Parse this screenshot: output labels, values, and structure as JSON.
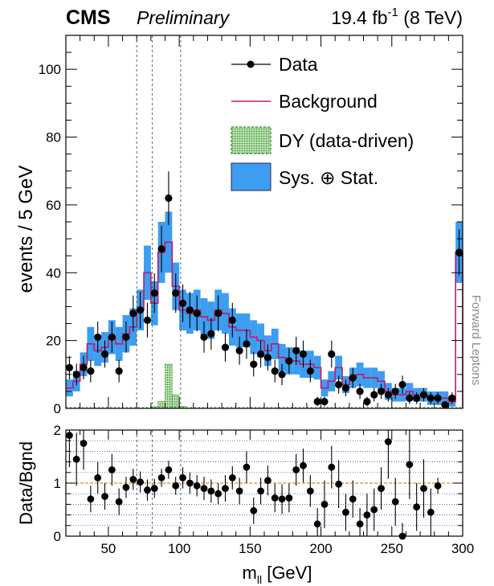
{
  "header": {
    "experiment": "CMS",
    "status": "Preliminary",
    "lumi_value": "19.4 fb",
    "lumi_exp": "-1",
    "energy": " (8 TeV)"
  },
  "colors": {
    "background_line": "#c0186f",
    "systematic_band": "#3d9df0",
    "dy_fill": "#8fc97f",
    "dy_edge": "#2f8a2f",
    "data": "#000000",
    "ratio_unity": "#ff8800",
    "ratio_grid": "#2a2a9a"
  },
  "side_label": "Forward  Leptons",
  "chart_data": [
    {
      "type": "histogram",
      "xlabel": "m",
      "xlabel_sub": "ll",
      "xlabel_unit": " [GeV]",
      "ylabel": "events / 5 GeV",
      "xlim": [
        20,
        300
      ],
      "ylim": [
        0,
        110
      ],
      "bin_width": 5,
      "x_ticks": [
        50,
        100,
        150,
        200,
        250,
        300
      ],
      "y_ticks": [
        0,
        20,
        40,
        60,
        80,
        100
      ],
      "vertical_dashed_lines": [
        70,
        81,
        101
      ],
      "legend": {
        "placement": "top-right",
        "entries": [
          "Data",
          "Background",
          "DY (data-driven)",
          "Sys. ⊕ Stat."
        ]
      },
      "bin_lows": [
        20,
        25,
        30,
        35,
        40,
        45,
        50,
        55,
        60,
        65,
        70,
        75,
        80,
        85,
        90,
        95,
        100,
        105,
        110,
        115,
        120,
        125,
        130,
        135,
        140,
        145,
        150,
        155,
        160,
        165,
        170,
        175,
        180,
        185,
        190,
        195,
        200,
        205,
        210,
        215,
        220,
        225,
        230,
        235,
        240,
        245,
        250,
        255,
        260,
        265,
        270,
        275,
        280,
        285,
        290,
        295
      ],
      "background": [
        6,
        8,
        13,
        19,
        17,
        18,
        21,
        19,
        22,
        24,
        29,
        40,
        31,
        46,
        49,
        36,
        29,
        28,
        29,
        27,
        26,
        29,
        28,
        24,
        23,
        23,
        21,
        20,
        17,
        19,
        15,
        14,
        14,
        13,
        13,
        12,
        6,
        8,
        12,
        7,
        9,
        10,
        9,
        9,
        8,
        5,
        4,
        4,
        5,
        4,
        4,
        3,
        3,
        3,
        2,
        46
      ],
      "band_half_width": [
        2.5,
        3.0,
        3.5,
        5.0,
        4.5,
        4.5,
        5.0,
        5.0,
        5.5,
        5.5,
        6.0,
        8.0,
        6.5,
        9.0,
        9.0,
        7.0,
        6.0,
        6.0,
        6.0,
        5.5,
        5.5,
        6.0,
        6.0,
        5.5,
        5.0,
        5.0,
        5.0,
        5.0,
        4.5,
        4.5,
        4.0,
        4.0,
        4.0,
        4.0,
        4.0,
        3.5,
        2.5,
        3.0,
        3.5,
        2.5,
        3.0,
        3.5,
        3.0,
        3.0,
        3.0,
        2.5,
        2.0,
        2.0,
        2.5,
        2.0,
        2.0,
        2.0,
        2.0,
        2.0,
        1.5,
        9.0
      ],
      "dy": [
        0,
        0,
        0,
        0,
        0,
        0,
        0,
        0,
        0,
        0,
        0,
        0,
        0.5,
        2,
        13,
        4,
        0.6,
        0,
        0,
        0,
        0,
        0,
        0,
        0,
        0,
        0,
        0,
        0,
        0,
        0,
        0,
        0,
        0,
        0,
        0,
        0,
        0,
        0,
        0,
        0,
        0,
        0,
        0,
        0,
        0,
        0,
        0,
        0,
        0,
        0,
        0,
        0,
        0,
        0,
        0,
        0
      ],
      "data_points": [
        {
          "x": 22.5,
          "y": 12
        },
        {
          "x": 27.5,
          "y": 10
        },
        {
          "x": 32.5,
          "y": 12
        },
        {
          "x": 37.5,
          "y": 11
        },
        {
          "x": 42.5,
          "y": 21
        },
        {
          "x": 47.5,
          "y": 16
        },
        {
          "x": 52.5,
          "y": 21
        },
        {
          "x": 57.5,
          "y": 11
        },
        {
          "x": 62.5,
          "y": 21
        },
        {
          "x": 67.5,
          "y": 28
        },
        {
          "x": 72.5,
          "y": 29
        },
        {
          "x": 77.5,
          "y": 26
        },
        {
          "x": 82.5,
          "y": 34
        },
        {
          "x": 87.5,
          "y": 47
        },
        {
          "x": 92.5,
          "y": 62
        },
        {
          "x": 97.5,
          "y": 34
        },
        {
          "x": 102.5,
          "y": 31
        },
        {
          "x": 107.5,
          "y": 29
        },
        {
          "x": 112.5,
          "y": 28
        },
        {
          "x": 117.5,
          "y": 21
        },
        {
          "x": 122.5,
          "y": 22
        },
        {
          "x": 127.5,
          "y": 28
        },
        {
          "x": 132.5,
          "y": 18
        },
        {
          "x": 137.5,
          "y": 26
        },
        {
          "x": 142.5,
          "y": 17
        },
        {
          "x": 147.5,
          "y": 19
        },
        {
          "x": 152.5,
          "y": 13
        },
        {
          "x": 157.5,
          "y": 16
        },
        {
          "x": 162.5,
          "y": 15
        },
        {
          "x": 167.5,
          "y": 11
        },
        {
          "x": 172.5,
          "y": 10
        },
        {
          "x": 177.5,
          "y": 14
        },
        {
          "x": 182.5,
          "y": 17
        },
        {
          "x": 187.5,
          "y": 16
        },
        {
          "x": 192.5,
          "y": 11
        },
        {
          "x": 197.5,
          "y": 2
        },
        {
          "x": 202.5,
          "y": 2
        },
        {
          "x": 207.5,
          "y": 16
        },
        {
          "x": 212.5,
          "y": 7
        },
        {
          "x": 217.5,
          "y": 6
        },
        {
          "x": 222.5,
          "y": 9
        },
        {
          "x": 227.5,
          "y": 5
        },
        {
          "x": 232.5,
          "y": 2
        },
        {
          "x": 237.5,
          "y": 4
        },
        {
          "x": 242.5,
          "y": 5
        },
        {
          "x": 247.5,
          "y": 4
        },
        {
          "x": 252.5,
          "y": 5
        },
        {
          "x": 257.5,
          "y": 7
        },
        {
          "x": 262.5,
          "y": 3
        },
        {
          "x": 267.5,
          "y": 3
        },
        {
          "x": 272.5,
          "y": 4
        },
        {
          "x": 277.5,
          "y": 3
        },
        {
          "x": 282.5,
          "y": 3
        },
        {
          "x": 287.5,
          "y": 1
        },
        {
          "x": 292.5,
          "y": 3
        },
        {
          "x": 297.5,
          "y": 46
        }
      ]
    },
    {
      "type": "scatter",
      "ylabel": "Data/Bgnd",
      "xlim": [
        20,
        300
      ],
      "ylim": [
        0,
        2
      ],
      "y_ticks": [
        0,
        1,
        2
      ],
      "x_ticks": [
        50,
        100,
        150,
        200,
        250,
        300
      ],
      "x_tick_labels": [
        "50",
        "100",
        "150",
        "200",
        "250",
        "300"
      ],
      "vertical_dashed_lines": [
        70,
        81,
        101
      ],
      "reference_line": 1,
      "grid_y": [
        0.2,
        0.4,
        0.6,
        0.8,
        1.0,
        1.2,
        1.4,
        1.6,
        1.8
      ],
      "points": [
        {
          "x": 22.5,
          "y": 1.9,
          "err": 0.6
        },
        {
          "x": 27.5,
          "y": 1.45,
          "err": 0.5
        },
        {
          "x": 32.5,
          "y": 1.75,
          "err": 0.5
        },
        {
          "x": 37.5,
          "y": 0.7,
          "err": 0.25
        },
        {
          "x": 42.5,
          "y": 1.1,
          "err": 0.3
        },
        {
          "x": 47.5,
          "y": 0.75,
          "err": 0.25
        },
        {
          "x": 52.5,
          "y": 1.25,
          "err": 0.3
        },
        {
          "x": 57.5,
          "y": 0.65,
          "err": 0.25
        },
        {
          "x": 62.5,
          "y": 0.92,
          "err": 0.2
        },
        {
          "x": 67.5,
          "y": 1.07,
          "err": 0.2
        },
        {
          "x": 72.5,
          "y": 1.02,
          "err": 0.2
        },
        {
          "x": 77.5,
          "y": 0.87,
          "err": 0.2
        },
        {
          "x": 82.5,
          "y": 0.9,
          "err": 0.18
        },
        {
          "x": 87.5,
          "y": 1.1,
          "err": 0.17
        },
        {
          "x": 92.5,
          "y": 1.25,
          "err": 0.17
        },
        {
          "x": 97.5,
          "y": 0.95,
          "err": 0.17
        },
        {
          "x": 102.5,
          "y": 1.1,
          "err": 0.2
        },
        {
          "x": 107.5,
          "y": 1.0,
          "err": 0.2
        },
        {
          "x": 112.5,
          "y": 0.95,
          "err": 0.2
        },
        {
          "x": 117.5,
          "y": 0.9,
          "err": 0.22
        },
        {
          "x": 122.5,
          "y": 0.85,
          "err": 0.22
        },
        {
          "x": 127.5,
          "y": 0.8,
          "err": 0.2
        },
        {
          "x": 132.5,
          "y": 0.9,
          "err": 0.25
        },
        {
          "x": 137.5,
          "y": 1.1,
          "err": 0.22
        },
        {
          "x": 142.5,
          "y": 0.85,
          "err": 0.25
        },
        {
          "x": 147.5,
          "y": 1.3,
          "err": 0.3
        },
        {
          "x": 152.5,
          "y": 0.48,
          "err": 0.25
        },
        {
          "x": 157.5,
          "y": 0.85,
          "err": 0.25
        },
        {
          "x": 162.5,
          "y": 1.05,
          "err": 0.28
        },
        {
          "x": 167.5,
          "y": 0.72,
          "err": 0.27
        },
        {
          "x": 172.5,
          "y": 0.7,
          "err": 0.28
        },
        {
          "x": 177.5,
          "y": 0.72,
          "err": 0.27
        },
        {
          "x": 182.5,
          "y": 1.25,
          "err": 0.3
        },
        {
          "x": 187.5,
          "y": 1.33,
          "err": 0.32
        },
        {
          "x": 192.5,
          "y": 0.85,
          "err": 0.3
        },
        {
          "x": 197.5,
          "y": 0.23,
          "err": 0.3
        },
        {
          "x": 202.5,
          "y": 0.6,
          "err": 0.45
        },
        {
          "x": 207.5,
          "y": 1.3,
          "err": 0.4
        },
        {
          "x": 212.5,
          "y": 0.98,
          "err": 0.45
        },
        {
          "x": 217.5,
          "y": 0.45,
          "err": 0.35
        },
        {
          "x": 222.5,
          "y": 0.7,
          "err": 0.35
        },
        {
          "x": 227.5,
          "y": 0.23,
          "err": 0.3
        },
        {
          "x": 232.5,
          "y": 0.4,
          "err": 0.4
        },
        {
          "x": 237.5,
          "y": 0.5,
          "err": 0.4
        },
        {
          "x": 242.5,
          "y": 0.9,
          "err": 0.4
        },
        {
          "x": 247.5,
          "y": 1.78,
          "err": 0.7
        },
        {
          "x": 252.5,
          "y": 0.65,
          "err": 0.45
        },
        {
          "x": 257.5,
          "y": 0.0,
          "err": 0.25
        },
        {
          "x": 262.5,
          "y": 1.35,
          "err": 0.65
        },
        {
          "x": 267.5,
          "y": 0.55,
          "err": 0.45
        },
        {
          "x": 272.5,
          "y": 0.9,
          "err": 0.55
        },
        {
          "x": 277.5,
          "y": 0.45,
          "err": 0.45
        },
        {
          "x": 282.5,
          "y": 0.95,
          "err": 0.15
        }
      ]
    }
  ]
}
